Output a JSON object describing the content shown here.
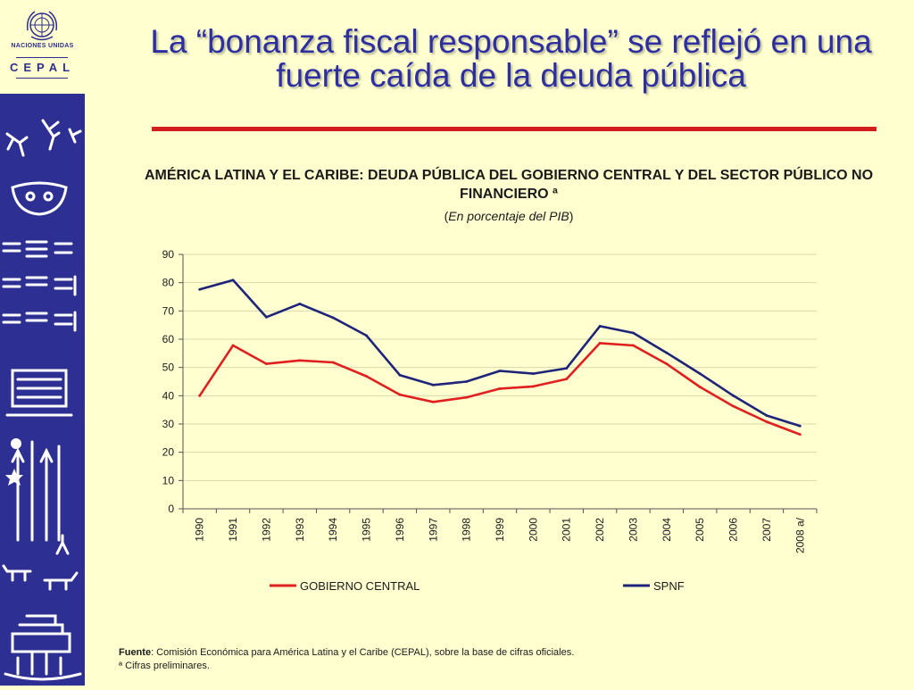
{
  "slide": {
    "title": "La “bonanza fiscal responsable” se reflejó en una fuerte caída de la deuda pública"
  },
  "branding": {
    "un_label": "NACIONES UNIDAS",
    "org_label": "CEPAL",
    "emblem_icon": "un-emblem-icon",
    "sidebar_color": "#2D3092"
  },
  "chart_data": {
    "type": "line",
    "title": "AMÉRICA LATINA Y EL CARIBE: DEUDA PÚBLICA DEL GOBIERNO CENTRAL Y DEL SECTOR PÚBLICO NO FINANCIERO ª",
    "subtitle": "(En porcentaje del PIB)",
    "xlabel": "",
    "ylabel": "",
    "ylim": [
      0,
      90
    ],
    "yticks": [
      0,
      10,
      20,
      30,
      40,
      50,
      60,
      70,
      80,
      90
    ],
    "grid": true,
    "legend_position": "bottom",
    "categories": [
      "1990",
      "1991",
      "1992",
      "1993",
      "1994",
      "1995",
      "1996",
      "1997",
      "1998",
      "1999",
      "2000",
      "2001",
      "2002",
      "2003",
      "2004",
      "2005",
      "2006",
      "2007",
      "2008 a/"
    ],
    "series": [
      {
        "name": "GOBIERNO CENTRAL",
        "color": "#E02020",
        "values": [
          40,
          57.8,
          51.3,
          52.5,
          51.8,
          46.9,
          40.4,
          37.8,
          39.4,
          42.5,
          43.3,
          45.9,
          58.6,
          57.8,
          51.3,
          43.1,
          36.3,
          30.8,
          26.3
        ]
      },
      {
        "name": "SPNF",
        "color": "#1E2478",
        "values": [
          77.6,
          80.9,
          67.8,
          72.5,
          67.6,
          61.3,
          47.3,
          43.8,
          45.0,
          48.8,
          47.8,
          49.7,
          64.6,
          62.2,
          55.2,
          47.8,
          40.0,
          33.0,
          29.3
        ]
      }
    ]
  },
  "footer": {
    "source_label": "Fuente",
    "source_text": ": Comisión Económica para América Latina y el Caribe (CEPAL), sobre la base de cifras oficiales.",
    "note": "ª Cifras preliminares."
  }
}
